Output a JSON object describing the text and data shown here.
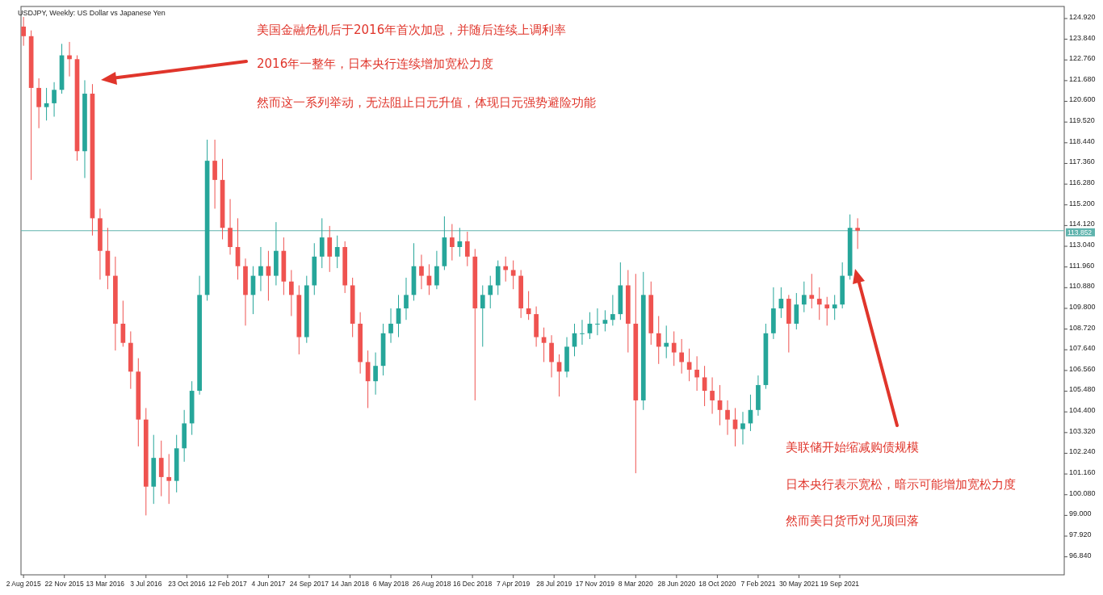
{
  "chart_data": {
    "type": "candlestick",
    "title": "USDJPY, Weekly:  US Dollar vs Japanese Yen",
    "annotations": [
      "美国金融危机后于2016年首次加息，并随后连续上调利率",
      "2016年一整年，日本央行连续增加宽松力度",
      "然而这一系列举动，无法阻止日元升值，体现日元强势避险功能",
      "美联储开始缩减购债规模",
      "日本央行表示宽松，暗示可能增加宽松力度",
      "然而美日货币对见顶回落"
    ],
    "x": [
      "2015-08-02",
      "2015-08-23",
      "2015-09-13",
      "2015-10-04",
      "2015-10-25",
      "2015-11-15",
      "2015-12-06",
      "2015-12-27",
      "2016-01-17",
      "2016-02-07",
      "2016-02-28",
      "2016-03-20",
      "2016-04-10",
      "2016-05-01",
      "2016-05-22",
      "2016-06-12",
      "2016-07-03",
      "2016-07-24",
      "2016-08-14",
      "2016-09-04",
      "2016-09-25",
      "2016-10-16",
      "2016-11-06",
      "2016-11-27",
      "2016-12-18",
      "2017-01-08",
      "2017-01-29",
      "2017-02-19",
      "2017-03-12",
      "2017-04-02",
      "2017-04-23",
      "2017-05-14",
      "2017-06-04",
      "2017-06-25",
      "2017-07-16",
      "2017-08-06",
      "2017-08-27",
      "2017-09-17",
      "2017-10-08",
      "2017-10-29",
      "2017-11-19",
      "2017-12-10",
      "2017-12-31",
      "2018-01-21",
      "2018-02-11",
      "2018-03-04",
      "2018-03-25",
      "2018-04-15",
      "2018-05-06",
      "2018-05-27",
      "2018-06-17",
      "2018-07-08",
      "2018-07-29",
      "2018-08-19",
      "2018-09-09",
      "2018-09-30",
      "2018-10-21",
      "2018-11-11",
      "2018-12-02",
      "2018-12-23",
      "2019-01-13",
      "2019-02-03",
      "2019-02-24",
      "2019-03-17",
      "2019-04-07",
      "2019-04-28",
      "2019-05-19",
      "2019-06-09",
      "2019-06-30",
      "2019-07-21",
      "2019-08-11",
      "2019-09-01",
      "2019-09-22",
      "2019-10-13",
      "2019-11-03",
      "2019-11-24",
      "2019-12-15",
      "2020-01-05",
      "2020-01-26",
      "2020-02-16",
      "2020-03-08",
      "2020-03-29",
      "2020-04-19",
      "2020-05-10",
      "2020-05-31",
      "2020-06-21",
      "2020-07-12",
      "2020-08-02",
      "2020-08-23",
      "2020-09-13",
      "2020-10-04",
      "2020-10-25",
      "2020-11-15",
      "2020-12-06",
      "2020-12-27",
      "2021-01-17",
      "2021-02-07",
      "2021-02-28",
      "2021-03-21",
      "2021-04-11",
      "2021-05-02",
      "2021-05-23",
      "2021-06-13",
      "2021-07-04",
      "2021-07-25",
      "2021-08-15",
      "2021-09-05",
      "2021-09-26",
      "2021-10-17",
      "2021-11-07"
    ],
    "ohlc": [
      [
        124.5,
        125.0,
        123.5,
        124.0
      ],
      [
        124.0,
        124.3,
        116.5,
        121.3
      ],
      [
        121.3,
        121.8,
        119.2,
        120.3
      ],
      [
        120.3,
        121.3,
        119.6,
        120.5
      ],
      [
        120.5,
        121.6,
        119.8,
        121.2
      ],
      [
        121.2,
        123.6,
        121.0,
        123.0
      ],
      [
        123.0,
        123.7,
        121.9,
        122.8
      ],
      [
        122.8,
        123.0,
        117.5,
        118.0
      ],
      [
        118.0,
        121.7,
        116.6,
        121.0
      ],
      [
        121.0,
        121.5,
        113.6,
        114.5
      ],
      [
        114.5,
        115.0,
        111.3,
        112.8
      ],
      [
        112.8,
        114.0,
        110.8,
        111.5
      ],
      [
        111.5,
        112.5,
        107.6,
        109.0
      ],
      [
        109.0,
        110.2,
        107.8,
        108.0
      ],
      [
        108.0,
        108.6,
        105.6,
        106.5
      ],
      [
        106.5,
        107.2,
        102.6,
        104.0
      ],
      [
        104.0,
        104.6,
        99.0,
        100.5
      ],
      [
        100.5,
        103.2,
        99.6,
        102.0
      ],
      [
        102.0,
        102.9,
        100.0,
        101.0
      ],
      [
        101.0,
        102.2,
        99.6,
        100.8
      ],
      [
        100.8,
        103.2,
        100.2,
        102.5
      ],
      [
        102.5,
        104.5,
        101.8,
        103.8
      ],
      [
        103.8,
        106.0,
        103.2,
        105.5
      ],
      [
        105.5,
        111.5,
        105.3,
        110.5
      ],
      [
        110.5,
        118.6,
        110.2,
        117.5
      ],
      [
        117.5,
        118.6,
        115.0,
        116.5
      ],
      [
        116.5,
        117.6,
        113.4,
        114.0
      ],
      [
        114.0,
        115.5,
        112.6,
        113.0
      ],
      [
        113.0,
        114.5,
        111.3,
        112.0
      ],
      [
        112.0,
        112.4,
        108.9,
        110.5
      ],
      [
        110.5,
        112.0,
        109.5,
        111.5
      ],
      [
        111.5,
        113.0,
        110.7,
        112.0
      ],
      [
        112.0,
        112.8,
        110.2,
        111.5
      ],
      [
        111.5,
        114.3,
        111.0,
        112.8
      ],
      [
        112.8,
        113.5,
        110.5,
        111.2
      ],
      [
        111.2,
        111.8,
        109.4,
        110.5
      ],
      [
        110.5,
        111.0,
        107.4,
        108.3
      ],
      [
        108.3,
        111.5,
        108.0,
        111.0
      ],
      [
        111.0,
        113.2,
        110.5,
        112.5
      ],
      [
        112.5,
        114.5,
        111.9,
        113.5
      ],
      [
        113.5,
        114.1,
        111.7,
        112.5
      ],
      [
        112.5,
        113.6,
        111.9,
        113.0
      ],
      [
        113.0,
        113.3,
        110.6,
        111.0
      ],
      [
        111.0,
        111.4,
        108.3,
        109.0
      ],
      [
        109.0,
        109.6,
        106.4,
        107.0
      ],
      [
        107.0,
        107.6,
        104.6,
        106.0
      ],
      [
        106.0,
        107.5,
        105.3,
        106.8
      ],
      [
        106.8,
        109.0,
        106.3,
        108.5
      ],
      [
        108.5,
        109.8,
        108.0,
        109.0
      ],
      [
        109.0,
        110.5,
        108.3,
        109.8
      ],
      [
        109.8,
        111.4,
        109.2,
        110.5
      ],
      [
        110.5,
        113.2,
        110.2,
        112.0
      ],
      [
        112.0,
        112.6,
        110.8,
        111.5
      ],
      [
        111.5,
        112.1,
        110.5,
        111.0
      ],
      [
        111.0,
        112.8,
        110.8,
        112.0
      ],
      [
        112.0,
        114.6,
        111.8,
        113.5
      ],
      [
        113.5,
        114.2,
        112.3,
        113.0
      ],
      [
        113.0,
        114.0,
        112.5,
        113.3
      ],
      [
        113.3,
        113.8,
        112.0,
        112.5
      ],
      [
        112.5,
        112.9,
        105.0,
        109.8
      ],
      [
        109.8,
        111.0,
        107.8,
        110.5
      ],
      [
        110.5,
        111.5,
        109.8,
        111.0
      ],
      [
        111.0,
        112.3,
        110.5,
        112.0
      ],
      [
        112.0,
        112.5,
        111.2,
        111.8
      ],
      [
        111.8,
        112.3,
        110.8,
        111.5
      ],
      [
        111.5,
        111.8,
        109.3,
        109.8
      ],
      [
        109.8,
        110.7,
        109.2,
        109.5
      ],
      [
        109.5,
        109.9,
        107.8,
        108.3
      ],
      [
        108.3,
        108.8,
        107.0,
        108.0
      ],
      [
        108.0,
        108.4,
        106.2,
        107.0
      ],
      [
        107.0,
        107.4,
        105.2,
        106.5
      ],
      [
        106.5,
        108.3,
        106.2,
        107.8
      ],
      [
        107.8,
        109.0,
        107.3,
        108.5
      ],
      [
        108.5,
        109.2,
        107.9,
        108.5
      ],
      [
        108.5,
        109.6,
        108.2,
        109.0
      ],
      [
        109.0,
        109.8,
        108.4,
        109.0
      ],
      [
        109.0,
        109.7,
        108.6,
        109.2
      ],
      [
        109.2,
        110.5,
        108.9,
        109.5
      ],
      [
        109.5,
        112.2,
        109.2,
        111.0
      ],
      [
        111.0,
        111.8,
        107.5,
        109.0
      ],
      [
        109.0,
        111.6,
        101.2,
        105.0
      ],
      [
        105.0,
        111.7,
        104.5,
        110.5
      ],
      [
        110.5,
        111.2,
        107.9,
        108.5
      ],
      [
        108.5,
        109.4,
        106.9,
        107.8
      ],
      [
        107.8,
        108.9,
        107.2,
        108.0
      ],
      [
        108.0,
        108.6,
        106.8,
        107.5
      ],
      [
        107.5,
        108.2,
        106.4,
        107.0
      ],
      [
        107.0,
        107.7,
        106.0,
        106.6
      ],
      [
        106.6,
        107.3,
        105.5,
        106.2
      ],
      [
        106.2,
        106.8,
        104.7,
        105.5
      ],
      [
        105.5,
        106.2,
        104.3,
        105.0
      ],
      [
        105.0,
        105.8,
        103.7,
        104.5
      ],
      [
        104.5,
        105.0,
        103.2,
        104.0
      ],
      [
        104.0,
        104.6,
        102.6,
        103.5
      ],
      [
        103.5,
        104.4,
        102.7,
        103.8
      ],
      [
        103.8,
        105.3,
        103.4,
        104.5
      ],
      [
        104.5,
        106.3,
        104.2,
        105.8
      ],
      [
        105.8,
        109.0,
        105.6,
        108.5
      ],
      [
        108.5,
        110.9,
        108.2,
        109.8
      ],
      [
        109.8,
        110.9,
        109.3,
        110.3
      ],
      [
        110.3,
        110.5,
        107.5,
        109.0
      ],
      [
        109.0,
        110.6,
        108.7,
        110.0
      ],
      [
        110.0,
        111.2,
        109.6,
        110.5
      ],
      [
        110.5,
        111.6,
        109.8,
        110.3
      ],
      [
        110.3,
        110.9,
        109.2,
        110.0
      ],
      [
        110.0,
        110.4,
        108.9,
        109.8
      ],
      [
        109.8,
        110.5,
        109.2,
        110.0
      ],
      [
        110.0,
        112.2,
        109.8,
        111.5
      ],
      [
        111.5,
        114.7,
        111.3,
        114.0
      ],
      [
        114.0,
        114.5,
        112.9,
        113.852
      ]
    ],
    "colors": [
      "#ef5350",
      "#ef5350",
      "#ef5350",
      "#26a69a",
      "#26a69a",
      "#26a69a",
      "#ef5350",
      "#ef5350",
      "#26a69a",
      "#ef5350",
      "#ef5350",
      "#ef5350",
      "#ef5350",
      "#ef5350",
      "#ef5350",
      "#ef5350",
      "#ef5350",
      "#26a69a",
      "#ef5350",
      "#ef5350",
      "#26a69a",
      "#26a69a",
      "#26a69a",
      "#26a69a",
      "#26a69a",
      "#ef5350",
      "#ef5350",
      "#ef5350",
      "#ef5350",
      "#ef5350",
      "#26a69a",
      "#26a69a",
      "#ef5350",
      "#26a69a",
      "#ef5350",
      "#ef5350",
      "#ef5350",
      "#26a69a",
      "#26a69a",
      "#26a69a",
      "#ef5350",
      "#26a69a",
      "#ef5350",
      "#ef5350",
      "#ef5350",
      "#ef5350",
      "#26a69a",
      "#26a69a",
      "#26a69a",
      "#26a69a",
      "#26a69a",
      "#26a69a",
      "#ef5350",
      "#ef5350",
      "#26a69a",
      "#26a69a",
      "#ef5350",
      "#26a69a",
      "#ef5350",
      "#ef5350",
      "#26a69a",
      "#26a69a",
      "#26a69a",
      "#ef5350",
      "#ef5350",
      "#ef5350",
      "#ef5350",
      "#ef5350",
      "#ef5350",
      "#ef5350",
      "#ef5350",
      "#26a69a",
      "#26a69a",
      "#26a69a",
      "#26a69a",
      "#26a69a",
      "#26a69a",
      "#26a69a",
      "#26a69a",
      "#ef5350",
      "#ef5350",
      "#26a69a",
      "#ef5350",
      "#ef5350",
      "#26a69a",
      "#ef5350",
      "#ef5350",
      "#ef5350",
      "#ef5350",
      "#ef5350",
      "#ef5350",
      "#ef5350",
      "#ef5350",
      "#ef5350",
      "#26a69a",
      "#26a69a",
      "#26a69a",
      "#26a69a",
      "#26a69a",
      "#26a69a",
      "#ef5350",
      "#26a69a",
      "#26a69a",
      "#ef5350",
      "#ef5350",
      "#ef5350",
      "#26a69a",
      "#26a69a",
      "#26a69a",
      "#ef5350"
    ],
    "xlim": [
      "2015-07-26",
      "2023-05-28"
    ],
    "xticks": [
      {
        "value": "2015-08-02",
        "label": "2 Aug 2015"
      },
      {
        "value": "2015-11-22",
        "label": "22 Nov 2015"
      },
      {
        "value": "2016-03-13",
        "label": "13 Mar 2016"
      },
      {
        "value": "2016-07-03",
        "label": "3 Jul 2016"
      },
      {
        "value": "2016-10-23",
        "label": "23 Oct 2016"
      },
      {
        "value": "2017-02-12",
        "label": "12 Feb 2017"
      },
      {
        "value": "2017-06-04",
        "label": "4 Jun 2017"
      },
      {
        "value": "2017-09-24",
        "label": "24 Sep 2017"
      },
      {
        "value": "2018-01-14",
        "label": "14 Jan 2018"
      },
      {
        "value": "2018-05-06",
        "label": "6 May 2018"
      },
      {
        "value": "2018-08-26",
        "label": "26 Aug 2018"
      },
      {
        "value": "2018-12-16",
        "label": "16 Dec 2018"
      },
      {
        "value": "2019-04-07",
        "label": "7 Apr 2019"
      },
      {
        "value": "2019-07-28",
        "label": "28 Jul 2019"
      },
      {
        "value": "2019-11-17",
        "label": "17 Nov 2019"
      },
      {
        "value": "2020-03-08",
        "label": "8 Mar 2020"
      },
      {
        "value": "2020-06-28",
        "label": "28 Jun 2020"
      },
      {
        "value": "2020-10-18",
        "label": "18 Oct 2020"
      },
      {
        "value": "2021-02-07",
        "label": "7 Feb 2021"
      },
      {
        "value": "2021-05-30",
        "label": "30 May 2021"
      },
      {
        "value": "2021-09-19",
        "label": "19 Sep 2021"
      }
    ],
    "ylim": [
      95.9,
      125.55
    ],
    "yticks": [
      {
        "value": 96.84,
        "label": "96.840"
      },
      {
        "value": 97.92,
        "label": "97.920"
      },
      {
        "value": 99,
        "label": "99.000"
      },
      {
        "value": 100.08,
        "label": "100.080"
      },
      {
        "value": 101.16,
        "label": "101.160"
      },
      {
        "value": 102.24,
        "label": "102.240"
      },
      {
        "value": 103.32,
        "label": "103.320"
      },
      {
        "value": 104.4,
        "label": "104.400"
      },
      {
        "value": 105.48,
        "label": "105.480"
      },
      {
        "value": 106.56,
        "label": "106.560"
      },
      {
        "value": 107.64,
        "label": "107.640"
      },
      {
        "value": 108.72,
        "label": "108.720"
      },
      {
        "value": 109.8,
        "label": "109.800"
      },
      {
        "value": 110.88,
        "label": "110.880"
      },
      {
        "value": 111.96,
        "label": "111.960"
      },
      {
        "value": 113.04,
        "label": "113.040"
      },
      {
        "value": 114.12,
        "label": "114.120"
      },
      {
        "value": 115.2,
        "label": "115.200"
      },
      {
        "value": 116.28,
        "label": "116.280"
      },
      {
        "value": 117.36,
        "label": "117.360"
      },
      {
        "value": 118.44,
        "label": "118.440"
      },
      {
        "value": 119.52,
        "label": "119.520"
      },
      {
        "value": 120.6,
        "label": "120.600"
      },
      {
        "value": 121.68,
        "label": "121.680"
      },
      {
        "value": 122.76,
        "label": "122.760"
      },
      {
        "value": 123.84,
        "label": "123.840"
      },
      {
        "value": 124.92,
        "label": "124.920"
      }
    ],
    "ref_lines": [
      {
        "axis": "y",
        "value": 113.852,
        "label": "113.852",
        "color": "#5fb3ad"
      }
    ]
  }
}
